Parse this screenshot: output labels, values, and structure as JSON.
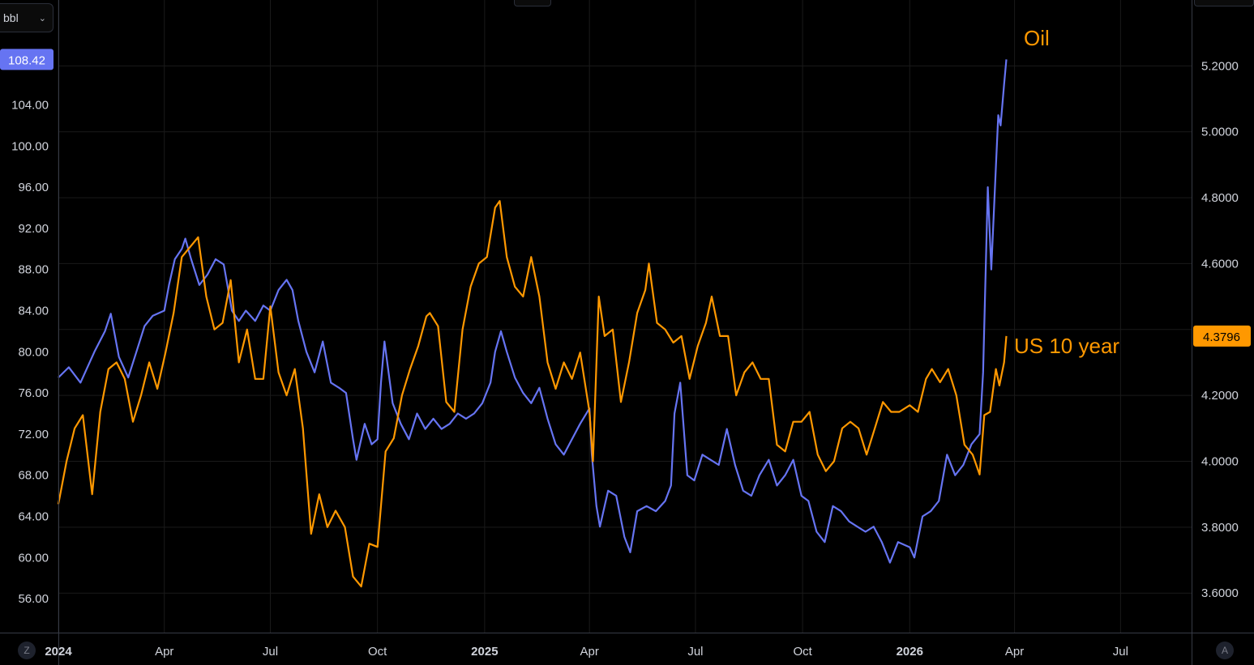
{
  "unit_selector": {
    "value": "bbl"
  },
  "corner_buttons": {
    "left": "Z",
    "right": "A"
  },
  "annotations": {
    "oil": "Oil",
    "us10": "US 10 year"
  },
  "colors": {
    "oil": "#6674f2",
    "us10": "#ff9800",
    "grid": "#1a1a1a",
    "axis_text": "#d1d4dc"
  },
  "chart_data": {
    "type": "line",
    "x_ticks": [
      "2024",
      "Apr",
      "Jul",
      "Oct",
      "2025",
      "Apr",
      "Jul",
      "Oct",
      "2026",
      "Apr",
      "Jul"
    ],
    "x_range": [
      "2024-01-01",
      "2026-08-31"
    ],
    "grid": true,
    "left_axis": {
      "ticks": [
        "104.00",
        "100.00",
        "96.00",
        "92.00",
        "88.00",
        "84.00",
        "80.00",
        "76.00",
        "72.00",
        "68.00",
        "64.00",
        "60.00",
        "56.00"
      ],
      "range": [
        52.7,
        114.2
      ],
      "last_value": "108.42"
    },
    "right_axis": {
      "ticks": [
        "5.2000",
        "5.0000",
        "4.8000",
        "4.6000",
        "4.2000",
        "4.0000",
        "3.8000",
        "3.6000"
      ],
      "range": [
        3.48,
        5.4
      ],
      "last_value": "4.3796"
    },
    "series": [
      {
        "name": "Oil",
        "axis": "left",
        "points": [
          [
            "2024-01-01",
            77.5
          ],
          [
            "2024-01-10",
            78.5
          ],
          [
            "2024-01-20",
            77.0
          ],
          [
            "2024-02-01",
            80.0
          ],
          [
            "2024-02-10",
            82.0
          ],
          [
            "2024-02-15",
            83.7
          ],
          [
            "2024-02-22",
            79.5
          ],
          [
            "2024-03-01",
            77.5
          ],
          [
            "2024-03-08",
            80.0
          ],
          [
            "2024-03-15",
            82.5
          ],
          [
            "2024-03-22",
            83.5
          ],
          [
            "2024-04-01",
            84.0
          ],
          [
            "2024-04-05",
            86.5
          ],
          [
            "2024-04-10",
            89.0
          ],
          [
            "2024-04-16",
            90.0
          ],
          [
            "2024-04-19",
            91.0
          ],
          [
            "2024-04-24",
            89.0
          ],
          [
            "2024-05-01",
            86.5
          ],
          [
            "2024-05-08",
            87.5
          ],
          [
            "2024-05-15",
            89.0
          ],
          [
            "2024-05-22",
            88.5
          ],
          [
            "2024-05-29",
            84.0
          ],
          [
            "2024-06-04",
            83.0
          ],
          [
            "2024-06-10",
            84.0
          ],
          [
            "2024-06-18",
            83.0
          ],
          [
            "2024-06-25",
            84.5
          ],
          [
            "2024-07-01",
            84.0
          ],
          [
            "2024-07-08",
            86.0
          ],
          [
            "2024-07-15",
            87.0
          ],
          [
            "2024-07-20",
            86.0
          ],
          [
            "2024-07-25",
            83.0
          ],
          [
            "2024-08-01",
            80.0
          ],
          [
            "2024-08-08",
            78.0
          ],
          [
            "2024-08-15",
            81.0
          ],
          [
            "2024-08-22",
            77.0
          ],
          [
            "2024-08-29",
            76.5
          ],
          [
            "2024-09-04",
            76.0
          ],
          [
            "2024-09-10",
            71.5
          ],
          [
            "2024-09-13",
            69.5
          ],
          [
            "2024-09-20",
            73.0
          ],
          [
            "2024-09-26",
            71.0
          ],
          [
            "2024-10-01",
            71.5
          ],
          [
            "2024-10-04",
            77.0
          ],
          [
            "2024-10-07",
            81.0
          ],
          [
            "2024-10-14",
            75.0
          ],
          [
            "2024-10-21",
            73.0
          ],
          [
            "2024-10-28",
            71.5
          ],
          [
            "2024-11-04",
            74.0
          ],
          [
            "2024-11-11",
            72.5
          ],
          [
            "2024-11-18",
            73.5
          ],
          [
            "2024-11-25",
            72.5
          ],
          [
            "2024-12-02",
            73.0
          ],
          [
            "2024-12-09",
            74.0
          ],
          [
            "2024-12-16",
            73.5
          ],
          [
            "2024-12-23",
            74.0
          ],
          [
            "2024-12-30",
            75.0
          ],
          [
            "2025-01-06",
            77.0
          ],
          [
            "2025-01-10",
            80.0
          ],
          [
            "2025-01-15",
            82.0
          ],
          [
            "2025-01-20",
            80.0
          ],
          [
            "2025-01-27",
            77.5
          ],
          [
            "2025-02-03",
            76.0
          ],
          [
            "2025-02-10",
            75.0
          ],
          [
            "2025-02-17",
            76.5
          ],
          [
            "2025-02-24",
            73.5
          ],
          [
            "2025-03-03",
            71.0
          ],
          [
            "2025-03-10",
            70.0
          ],
          [
            "2025-03-17",
            71.5
          ],
          [
            "2025-03-24",
            73.0
          ],
          [
            "2025-04-01",
            74.5
          ],
          [
            "2025-04-03",
            70.0
          ],
          [
            "2025-04-07",
            65.0
          ],
          [
            "2025-04-10",
            63.0
          ],
          [
            "2025-04-17",
            66.5
          ],
          [
            "2025-04-24",
            66.0
          ],
          [
            "2025-05-01",
            62.0
          ],
          [
            "2025-05-06",
            60.5
          ],
          [
            "2025-05-12",
            64.5
          ],
          [
            "2025-05-20",
            65.0
          ],
          [
            "2025-05-28",
            64.5
          ],
          [
            "2025-06-05",
            65.5
          ],
          [
            "2025-06-10",
            67.0
          ],
          [
            "2025-06-13",
            74.0
          ],
          [
            "2025-06-18",
            77.0
          ],
          [
            "2025-06-24",
            68.0
          ],
          [
            "2025-06-30",
            67.5
          ],
          [
            "2025-07-07",
            70.0
          ],
          [
            "2025-07-14",
            69.5
          ],
          [
            "2025-07-21",
            69.0
          ],
          [
            "2025-07-28",
            72.5
          ],
          [
            "2025-08-04",
            69.0
          ],
          [
            "2025-08-11",
            66.5
          ],
          [
            "2025-08-18",
            66.0
          ],
          [
            "2025-08-25",
            68.0
          ],
          [
            "2025-09-02",
            69.5
          ],
          [
            "2025-09-09",
            67.0
          ],
          [
            "2025-09-16",
            68.0
          ],
          [
            "2025-09-23",
            69.5
          ],
          [
            "2025-09-30",
            66.0
          ],
          [
            "2025-10-06",
            65.5
          ],
          [
            "2025-10-13",
            62.5
          ],
          [
            "2025-10-20",
            61.5
          ],
          [
            "2025-10-27",
            65.0
          ],
          [
            "2025-11-03",
            64.5
          ],
          [
            "2025-11-10",
            63.5
          ],
          [
            "2025-11-17",
            63.0
          ],
          [
            "2025-11-24",
            62.5
          ],
          [
            "2025-12-01",
            63.0
          ],
          [
            "2025-12-08",
            61.5
          ],
          [
            "2025-12-15",
            59.5
          ],
          [
            "2025-12-22",
            61.5
          ],
          [
            "2026-01-01",
            61.0
          ],
          [
            "2026-01-05",
            60.0
          ],
          [
            "2026-01-12",
            64.0
          ],
          [
            "2026-01-19",
            64.5
          ],
          [
            "2026-01-26",
            65.5
          ],
          [
            "2026-02-02",
            70.0
          ],
          [
            "2026-02-09",
            68.0
          ],
          [
            "2026-02-16",
            69.0
          ],
          [
            "2026-02-23",
            71.0
          ],
          [
            "2026-03-02",
            72.0
          ],
          [
            "2026-03-05",
            78.0
          ],
          [
            "2026-03-09",
            96.0
          ],
          [
            "2026-03-12",
            88.0
          ],
          [
            "2026-03-16",
            98.0
          ],
          [
            "2026-03-18",
            103.0
          ],
          [
            "2026-03-20",
            102.0
          ],
          [
            "2026-03-23",
            106.0
          ],
          [
            "2026-03-25",
            108.42
          ]
        ]
      },
      {
        "name": "US 10 year",
        "axis": "right",
        "points": [
          [
            "2024-01-01",
            3.87
          ],
          [
            "2024-01-08",
            4.0
          ],
          [
            "2024-01-15",
            4.1
          ],
          [
            "2024-01-22",
            4.14
          ],
          [
            "2024-01-30",
            3.9
          ],
          [
            "2024-02-06",
            4.15
          ],
          [
            "2024-02-13",
            4.28
          ],
          [
            "2024-02-20",
            4.3
          ],
          [
            "2024-02-27",
            4.25
          ],
          [
            "2024-03-05",
            4.12
          ],
          [
            "2024-03-12",
            4.2
          ],
          [
            "2024-03-19",
            4.3
          ],
          [
            "2024-03-26",
            4.22
          ],
          [
            "2024-04-02",
            4.33
          ],
          [
            "2024-04-09",
            4.45
          ],
          [
            "2024-04-16",
            4.62
          ],
          [
            "2024-04-23",
            4.65
          ],
          [
            "2024-04-30",
            4.68
          ],
          [
            "2024-05-07",
            4.5
          ],
          [
            "2024-05-14",
            4.4
          ],
          [
            "2024-05-21",
            4.42
          ],
          [
            "2024-05-28",
            4.55
          ],
          [
            "2024-06-04",
            4.3
          ],
          [
            "2024-06-11",
            4.4
          ],
          [
            "2024-06-18",
            4.25
          ],
          [
            "2024-06-25",
            4.25
          ],
          [
            "2024-07-01",
            4.47
          ],
          [
            "2024-07-08",
            4.27
          ],
          [
            "2024-07-15",
            4.2
          ],
          [
            "2024-07-22",
            4.28
          ],
          [
            "2024-07-29",
            4.1
          ],
          [
            "2024-08-05",
            3.78
          ],
          [
            "2024-08-12",
            3.9
          ],
          [
            "2024-08-19",
            3.8
          ],
          [
            "2024-08-26",
            3.85
          ],
          [
            "2024-09-03",
            3.8
          ],
          [
            "2024-09-10",
            3.65
          ],
          [
            "2024-09-17",
            3.62
          ],
          [
            "2024-09-24",
            3.75
          ],
          [
            "2024-10-01",
            3.74
          ],
          [
            "2024-10-08",
            4.03
          ],
          [
            "2024-10-15",
            4.07
          ],
          [
            "2024-10-22",
            4.2
          ],
          [
            "2024-10-29",
            4.28
          ],
          [
            "2024-11-05",
            4.35
          ],
          [
            "2024-11-12",
            4.44
          ],
          [
            "2024-11-15",
            4.45
          ],
          [
            "2024-11-22",
            4.41
          ],
          [
            "2024-11-29",
            4.18
          ],
          [
            "2024-12-06",
            4.15
          ],
          [
            "2024-12-13",
            4.4
          ],
          [
            "2024-12-20",
            4.53
          ],
          [
            "2024-12-27",
            4.6
          ],
          [
            "2025-01-03",
            4.62
          ],
          [
            "2025-01-10",
            4.77
          ],
          [
            "2025-01-14",
            4.79
          ],
          [
            "2025-01-20",
            4.62
          ],
          [
            "2025-01-27",
            4.53
          ],
          [
            "2025-02-03",
            4.5
          ],
          [
            "2025-02-10",
            4.62
          ],
          [
            "2025-02-17",
            4.5
          ],
          [
            "2025-02-24",
            4.3
          ],
          [
            "2025-03-03",
            4.22
          ],
          [
            "2025-03-10",
            4.3
          ],
          [
            "2025-03-17",
            4.25
          ],
          [
            "2025-03-24",
            4.33
          ],
          [
            "2025-04-01",
            4.15
          ],
          [
            "2025-04-04",
            4.0
          ],
          [
            "2025-04-09",
            4.5
          ],
          [
            "2025-04-14",
            4.38
          ],
          [
            "2025-04-21",
            4.4
          ],
          [
            "2025-04-28",
            4.18
          ],
          [
            "2025-05-05",
            4.3
          ],
          [
            "2025-05-12",
            4.45
          ],
          [
            "2025-05-19",
            4.52
          ],
          [
            "2025-05-22",
            4.6
          ],
          [
            "2025-05-29",
            4.42
          ],
          [
            "2025-06-05",
            4.4
          ],
          [
            "2025-06-12",
            4.36
          ],
          [
            "2025-06-19",
            4.38
          ],
          [
            "2025-06-26",
            4.25
          ],
          [
            "2025-07-03",
            4.35
          ],
          [
            "2025-07-10",
            4.42
          ],
          [
            "2025-07-15",
            4.5
          ],
          [
            "2025-07-22",
            4.38
          ],
          [
            "2025-07-29",
            4.38
          ],
          [
            "2025-08-05",
            4.2
          ],
          [
            "2025-08-12",
            4.27
          ],
          [
            "2025-08-19",
            4.3
          ],
          [
            "2025-08-26",
            4.25
          ],
          [
            "2025-09-02",
            4.25
          ],
          [
            "2025-09-09",
            4.05
          ],
          [
            "2025-09-16",
            4.03
          ],
          [
            "2025-09-23",
            4.12
          ],
          [
            "2025-09-30",
            4.12
          ],
          [
            "2025-10-07",
            4.15
          ],
          [
            "2025-10-14",
            4.02
          ],
          [
            "2025-10-21",
            3.97
          ],
          [
            "2025-10-28",
            4.0
          ],
          [
            "2025-11-04",
            4.1
          ],
          [
            "2025-11-11",
            4.12
          ],
          [
            "2025-11-18",
            4.1
          ],
          [
            "2025-11-25",
            4.02
          ],
          [
            "2025-12-02",
            4.1
          ],
          [
            "2025-12-09",
            4.18
          ],
          [
            "2025-12-16",
            4.15
          ],
          [
            "2025-12-23",
            4.15
          ],
          [
            "2026-01-01",
            4.17
          ],
          [
            "2026-01-08",
            4.15
          ],
          [
            "2026-01-15",
            4.25
          ],
          [
            "2026-01-20",
            4.28
          ],
          [
            "2026-01-27",
            4.24
          ],
          [
            "2026-02-03",
            4.28
          ],
          [
            "2026-02-10",
            4.2
          ],
          [
            "2026-02-17",
            4.05
          ],
          [
            "2026-02-24",
            4.02
          ],
          [
            "2026-03-02",
            3.96
          ],
          [
            "2026-03-06",
            4.14
          ],
          [
            "2026-03-11",
            4.15
          ],
          [
            "2026-03-16",
            4.28
          ],
          [
            "2026-03-19",
            4.23
          ],
          [
            "2026-03-23",
            4.3
          ],
          [
            "2026-03-25",
            4.38
          ]
        ]
      }
    ]
  }
}
